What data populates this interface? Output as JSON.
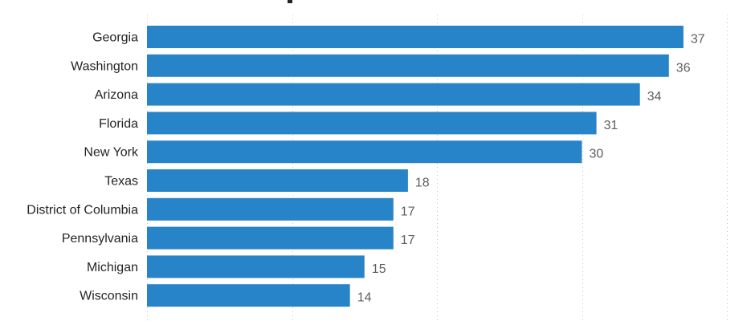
{
  "chart_data": {
    "type": "bar",
    "orientation": "horizontal",
    "categories": [
      "Georgia",
      "Washington",
      "Arizona",
      "Florida",
      "New York",
      "Texas",
      "District of Columbia",
      "Pennsylvania",
      "Michigan",
      "Wisconsin"
    ],
    "values": [
      37,
      36,
      34,
      31,
      30,
      18,
      17,
      17,
      15,
      14
    ],
    "xlim": [
      0,
      40
    ],
    "grid": true,
    "data_labels": true,
    "bar_color": "#2884c8"
  }
}
